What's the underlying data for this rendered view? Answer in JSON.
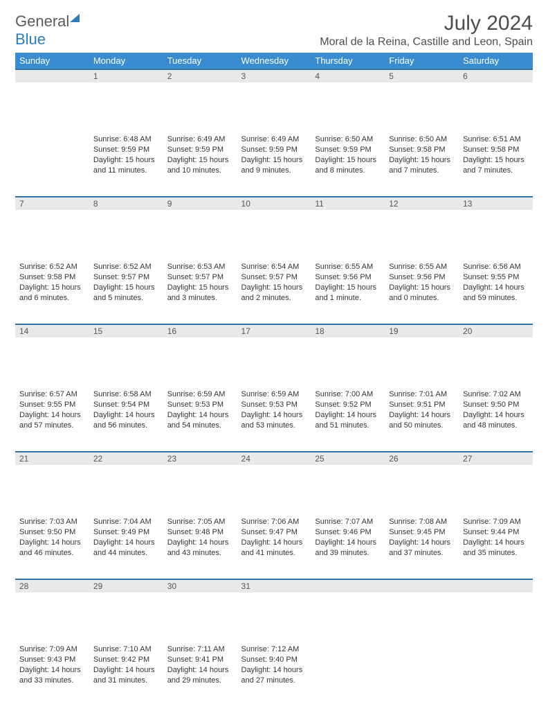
{
  "brand": {
    "part1": "General",
    "part2": "Blue"
  },
  "title": "July 2024",
  "location": "Moral de la Reina, Castille and Leon, Spain",
  "day_headers": [
    "Sunday",
    "Monday",
    "Tuesday",
    "Wednesday",
    "Thursday",
    "Friday",
    "Saturday"
  ],
  "header_bg": "#3a8cd0",
  "header_text": "#ffffff",
  "daynum_bg": "#e7e9eb",
  "row_border": "#2f6fa8",
  "font_body_size": 11,
  "weeks": [
    [
      null,
      {
        "n": "1",
        "sunrise": "6:48 AM",
        "sunset": "9:59 PM",
        "daylight": "15 hours and 11 minutes."
      },
      {
        "n": "2",
        "sunrise": "6:49 AM",
        "sunset": "9:59 PM",
        "daylight": "15 hours and 10 minutes."
      },
      {
        "n": "3",
        "sunrise": "6:49 AM",
        "sunset": "9:59 PM",
        "daylight": "15 hours and 9 minutes."
      },
      {
        "n": "4",
        "sunrise": "6:50 AM",
        "sunset": "9:59 PM",
        "daylight": "15 hours and 8 minutes."
      },
      {
        "n": "5",
        "sunrise": "6:50 AM",
        "sunset": "9:58 PM",
        "daylight": "15 hours and 7 minutes."
      },
      {
        "n": "6",
        "sunrise": "6:51 AM",
        "sunset": "9:58 PM",
        "daylight": "15 hours and 7 minutes."
      }
    ],
    [
      {
        "n": "7",
        "sunrise": "6:52 AM",
        "sunset": "9:58 PM",
        "daylight": "15 hours and 6 minutes."
      },
      {
        "n": "8",
        "sunrise": "6:52 AM",
        "sunset": "9:57 PM",
        "daylight": "15 hours and 5 minutes."
      },
      {
        "n": "9",
        "sunrise": "6:53 AM",
        "sunset": "9:57 PM",
        "daylight": "15 hours and 3 minutes."
      },
      {
        "n": "10",
        "sunrise": "6:54 AM",
        "sunset": "9:57 PM",
        "daylight": "15 hours and 2 minutes."
      },
      {
        "n": "11",
        "sunrise": "6:55 AM",
        "sunset": "9:56 PM",
        "daylight": "15 hours and 1 minute."
      },
      {
        "n": "12",
        "sunrise": "6:55 AM",
        "sunset": "9:56 PM",
        "daylight": "15 hours and 0 minutes."
      },
      {
        "n": "13",
        "sunrise": "6:56 AM",
        "sunset": "9:55 PM",
        "daylight": "14 hours and 59 minutes."
      }
    ],
    [
      {
        "n": "14",
        "sunrise": "6:57 AM",
        "sunset": "9:55 PM",
        "daylight": "14 hours and 57 minutes."
      },
      {
        "n": "15",
        "sunrise": "6:58 AM",
        "sunset": "9:54 PM",
        "daylight": "14 hours and 56 minutes."
      },
      {
        "n": "16",
        "sunrise": "6:59 AM",
        "sunset": "9:53 PM",
        "daylight": "14 hours and 54 minutes."
      },
      {
        "n": "17",
        "sunrise": "6:59 AM",
        "sunset": "9:53 PM",
        "daylight": "14 hours and 53 minutes."
      },
      {
        "n": "18",
        "sunrise": "7:00 AM",
        "sunset": "9:52 PM",
        "daylight": "14 hours and 51 minutes."
      },
      {
        "n": "19",
        "sunrise": "7:01 AM",
        "sunset": "9:51 PM",
        "daylight": "14 hours and 50 minutes."
      },
      {
        "n": "20",
        "sunrise": "7:02 AM",
        "sunset": "9:50 PM",
        "daylight": "14 hours and 48 minutes."
      }
    ],
    [
      {
        "n": "21",
        "sunrise": "7:03 AM",
        "sunset": "9:50 PM",
        "daylight": "14 hours and 46 minutes."
      },
      {
        "n": "22",
        "sunrise": "7:04 AM",
        "sunset": "9:49 PM",
        "daylight": "14 hours and 44 minutes."
      },
      {
        "n": "23",
        "sunrise": "7:05 AM",
        "sunset": "9:48 PM",
        "daylight": "14 hours and 43 minutes."
      },
      {
        "n": "24",
        "sunrise": "7:06 AM",
        "sunset": "9:47 PM",
        "daylight": "14 hours and 41 minutes."
      },
      {
        "n": "25",
        "sunrise": "7:07 AM",
        "sunset": "9:46 PM",
        "daylight": "14 hours and 39 minutes."
      },
      {
        "n": "26",
        "sunrise": "7:08 AM",
        "sunset": "9:45 PM",
        "daylight": "14 hours and 37 minutes."
      },
      {
        "n": "27",
        "sunrise": "7:09 AM",
        "sunset": "9:44 PM",
        "daylight": "14 hours and 35 minutes."
      }
    ],
    [
      {
        "n": "28",
        "sunrise": "7:09 AM",
        "sunset": "9:43 PM",
        "daylight": "14 hours and 33 minutes."
      },
      {
        "n": "29",
        "sunrise": "7:10 AM",
        "sunset": "9:42 PM",
        "daylight": "14 hours and 31 minutes."
      },
      {
        "n": "30",
        "sunrise": "7:11 AM",
        "sunset": "9:41 PM",
        "daylight": "14 hours and 29 minutes."
      },
      {
        "n": "31",
        "sunrise": "7:12 AM",
        "sunset": "9:40 PM",
        "daylight": "14 hours and 27 minutes."
      },
      null,
      null,
      null
    ]
  ],
  "labels": {
    "sunrise": "Sunrise:",
    "sunset": "Sunset:",
    "daylight": "Daylight:"
  }
}
